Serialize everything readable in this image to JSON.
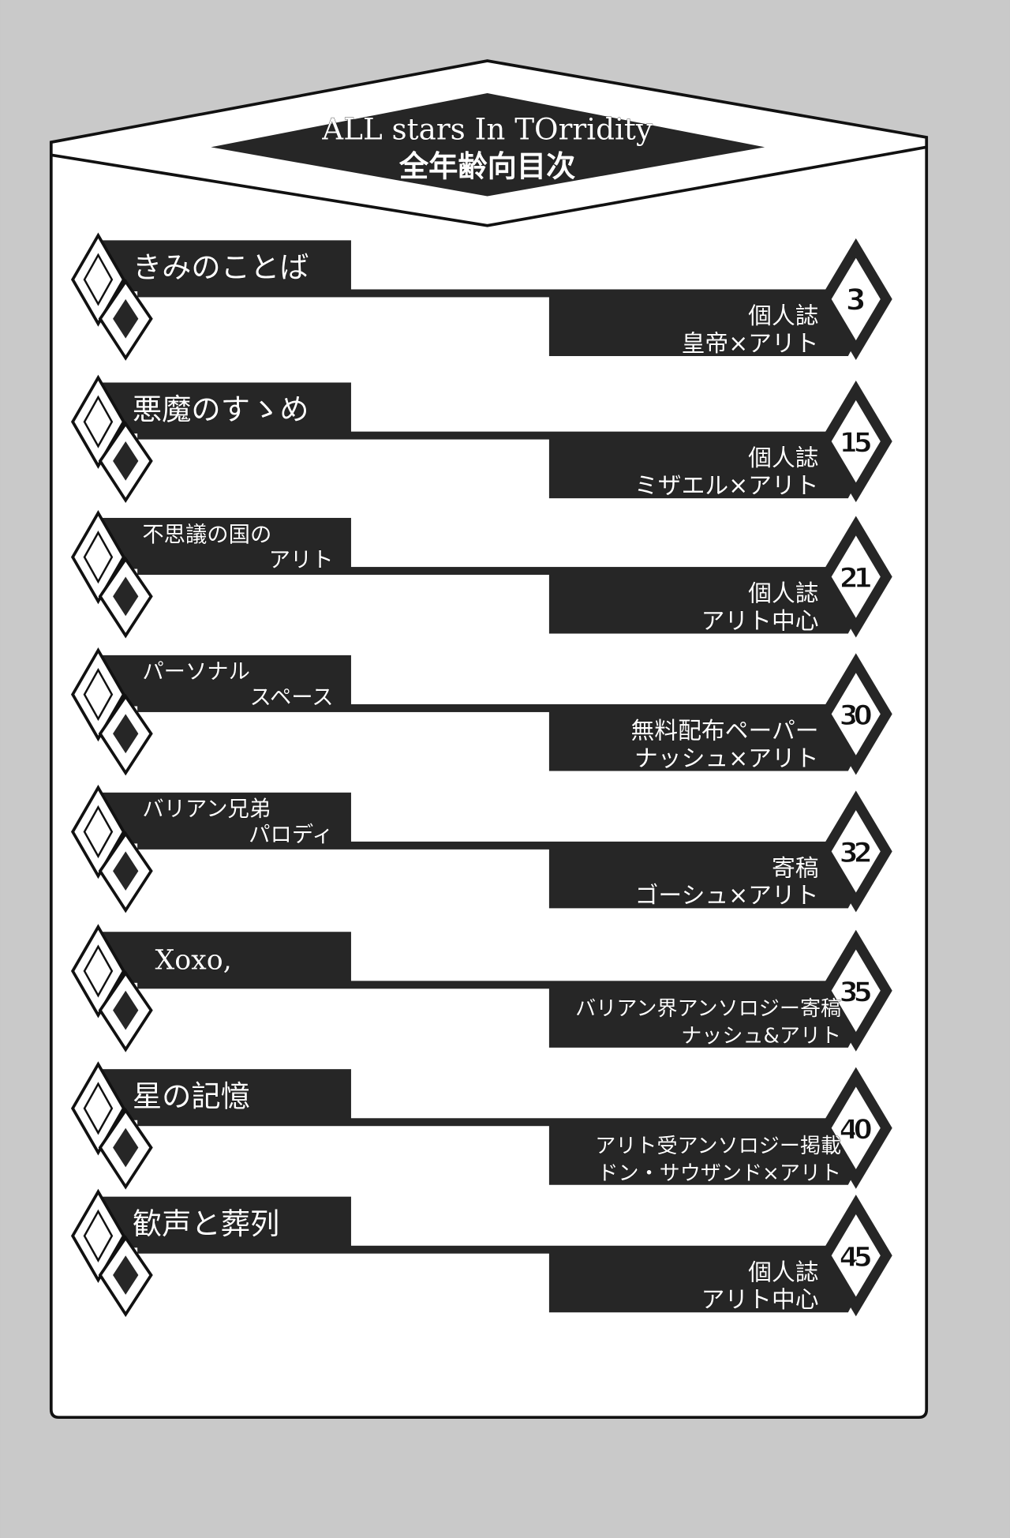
{
  "header": {
    "title": "ALL stars In TOrridity",
    "subtitle": "全年齢向目次"
  },
  "colors": {
    "ink": "#262626",
    "paper": "#ffffff",
    "background": "#c9c9c9"
  },
  "entries": [
    {
      "title_lines": [
        "きみのことば"
      ],
      "type": "個人誌",
      "pairing": "皇帝×アリト",
      "page": "3"
    },
    {
      "title_lines": [
        "悪魔のすゝめ"
      ],
      "type": "個人誌",
      "pairing": "ミザエル×アリト",
      "page": "15"
    },
    {
      "title_lines": [
        "不思議の国の",
        "アリト"
      ],
      "type": "個人誌",
      "pairing": "アリト中心",
      "page": "21"
    },
    {
      "title_lines": [
        "パーソナル",
        "スペース"
      ],
      "type": "無料配布ペーパー",
      "pairing": "ナッシュ×アリト",
      "page": "30"
    },
    {
      "title_lines": [
        "バリアン兄弟",
        "パロディ"
      ],
      "type": "寄稿",
      "pairing": "ゴーシュ×アリト",
      "page": "32"
    },
    {
      "title_lines": [
        "Xoxo,"
      ],
      "type": "バリアン界アンソロジー寄稿",
      "pairing": "ナッシュ&アリト",
      "page": "35"
    },
    {
      "title_lines": [
        "星の記憶"
      ],
      "type": "アリト受アンソロジー掲載",
      "pairing": "ドン・サウザンド×アリト",
      "page": "40"
    },
    {
      "title_lines": [
        "歓声と葬列"
      ],
      "type": "個人誌",
      "pairing": "アリト中心",
      "page": "45"
    }
  ]
}
